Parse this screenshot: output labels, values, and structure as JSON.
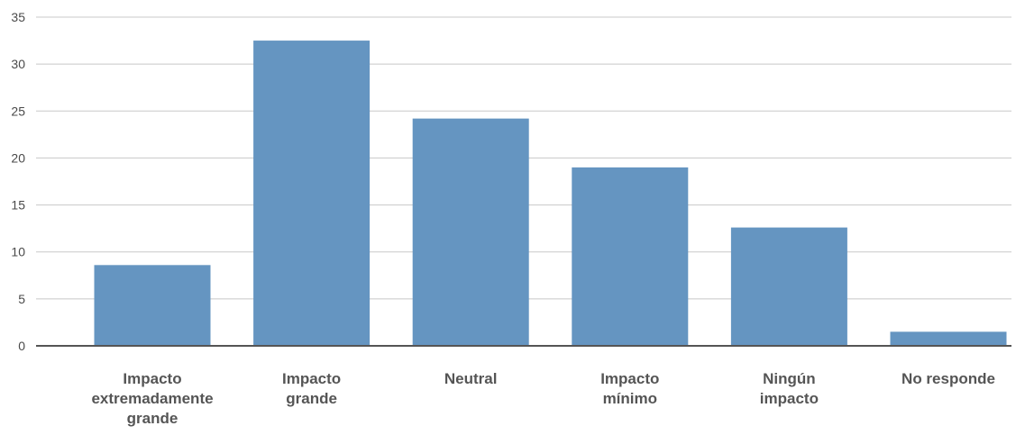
{
  "chart_data": {
    "type": "bar",
    "categories": [
      "Impacto extremadamente grande",
      "Impacto grande",
      "Neutral",
      "Impacto mínimo",
      "Ningún impacto",
      "No responde"
    ],
    "category_lines": [
      [
        "Impacto",
        "extremadamente",
        "grande"
      ],
      [
        "Impacto",
        "grande"
      ],
      [
        "Neutral"
      ],
      [
        "Impacto",
        "mínimo"
      ],
      [
        "Ningún",
        "impacto"
      ],
      [
        "No responde"
      ]
    ],
    "values": [
      8.6,
      32.5,
      24.2,
      19.0,
      12.6,
      1.5
    ],
    "yticks": [
      "0",
      "5",
      "10",
      "15",
      "20",
      "25",
      "30",
      "35"
    ],
    "ylim": [
      0,
      35
    ],
    "grid": true,
    "legend": "none",
    "colors": {
      "bar": "#6595c1",
      "grid": "#c8c8c8",
      "axis": "#555555"
    }
  }
}
